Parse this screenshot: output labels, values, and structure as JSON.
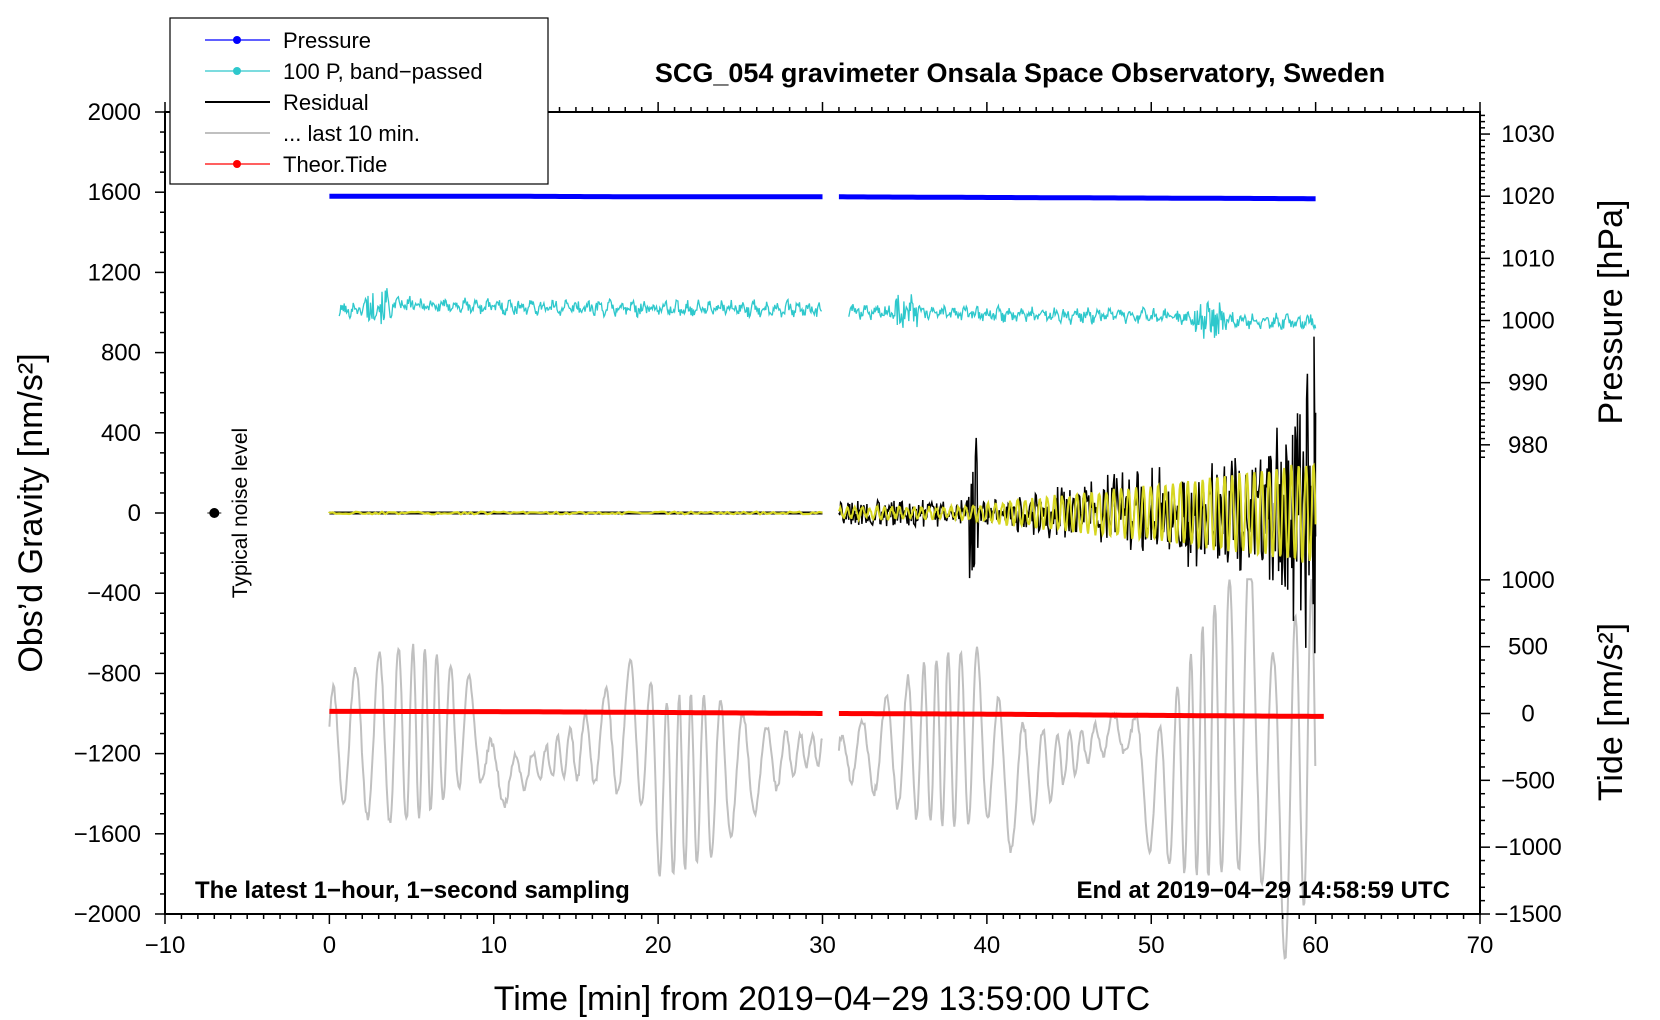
{
  "chart_data": {
    "type": "line",
    "title": "SCG_054 gravimeter Onsala Space Observatory, Sweden",
    "xlabel": "Time [min] from 2019−04−29 13:59:00 UTC",
    "ylabel_left": "Obs’d Gravity [nm/s²]",
    "ylabel_right_upper": "Pressure [hPa]",
    "ylabel_right_lower": "Tide [nm/s²]",
    "xlim": [
      -10,
      70
    ],
    "ylim_left": [
      -2000,
      2000
    ],
    "x_ticks": [
      -10,
      0,
      10,
      20,
      30,
      40,
      50,
      60,
      70
    ],
    "x_tick_labels": [
      "−10",
      "0",
      "10",
      "20",
      "30",
      "40",
      "50",
      "60",
      "70"
    ],
    "y_left_ticks": [
      2000,
      1600,
      1200,
      800,
      400,
      0,
      -400,
      -800,
      -1200,
      -1600,
      -2000
    ],
    "y_left_tick_labels": [
      "2000",
      "1600",
      "1200",
      "800",
      "400",
      "0",
      "−400",
      "−800",
      "−1200",
      "−1600",
      "−2000"
    ],
    "pressure_axis": {
      "ticks": [
        1030,
        1020,
        1010,
        1000,
        990,
        980
      ],
      "tick_labels": [
        "1030",
        "1020",
        "1010",
        "1000",
        "990",
        "980"
      ],
      "gravity_at_1020": 1580,
      "gravity_per_hPa": 31
    },
    "tide_axis": {
      "ticks": [
        1000,
        500,
        0,
        -500,
        -1000,
        -1500
      ],
      "tick_labels": [
        "1000",
        "500",
        "0",
        "−500",
        "−1000",
        "−1500"
      ],
      "gravity_at_0": -1000,
      "gravity_per_unit": 0.6667
    },
    "legend": {
      "position": "top-left",
      "entries": [
        {
          "label": "Pressure",
          "color": "#0000ff",
          "marker": true
        },
        {
          "label": "100 P, band−passed",
          "color": "#2ec8cc",
          "marker": true
        },
        {
          "label": "Residual",
          "color": "#000000",
          "marker": false
        },
        {
          "label": "... last 10 min.",
          "color": "#c0c0c0",
          "marker": false
        },
        {
          "label": "Theor.Tide",
          "color": "#ff0000",
          "marker": true
        }
      ]
    },
    "annotations": {
      "bottom_left": "The latest 1−hour, 1−second sampling",
      "bottom_right": "End at 2019−04−29 14:58:59 UTC",
      "noise_label": "Typical noise level"
    },
    "noise_marker": {
      "x": -7,
      "y": 0,
      "err": 40
    },
    "series": [
      {
        "name": "Pressure",
        "color": "#0000ff",
        "unit": "hPa",
        "segments": [
          {
            "x": [
              0,
              10,
              20,
              30
            ],
            "y": [
              1020.0,
              1020.0,
              1019.9,
              1019.9
            ]
          },
          {
            "x": [
              31,
              40,
              50,
              60
            ],
            "y": [
              1019.9,
              1019.8,
              1019.7,
              1019.6
            ]
          }
        ]
      },
      {
        "name": "100 P, band−passed",
        "color": "#2ec8cc",
        "unit": "nm/s² (offset)",
        "segments": [
          {
            "x": [
              0,
              2,
              3,
              10,
              20,
              28,
              30
            ],
            "y": [
              1000,
              1020,
              1040,
              1030,
              1020,
              1020,
              1010
            ]
          },
          {
            "x": [
              31,
              35,
              40,
              50,
              53.5,
              58,
              60
            ],
            "y": [
              1010,
              1000,
              990,
              980,
              960,
              955,
              950
            ]
          }
        ]
      },
      {
        "name": "Residual",
        "color": "#000000",
        "unit": "nm/s²",
        "segments": [
          {
            "x": [
              0,
              30
            ],
            "y": [
              0,
              0
            ]
          },
          {
            "x": [
              31,
              38.5,
              39,
              39.3,
              40,
              47,
              52,
              55,
              58,
              59.5,
              60
            ],
            "y": [
              60,
              70,
              420,
              -430,
              90,
              200,
              330,
              -340,
              480,
              -700,
              880
            ]
          }
        ]
      },
      {
        "name": "... last 10 min.",
        "color": "#c0c0c0",
        "unit": "nm/s² (offset)",
        "segments": [
          {
            "x": [
              0,
              9,
              10,
              19,
              20,
              30
            ],
            "y": [
              -1000,
              -780,
              -1580,
              -760,
              -1700,
              -1070
            ]
          },
          {
            "x": [
              31,
              40,
              41,
              48.5,
              50,
              56.5,
              57.5,
              60
            ],
            "y": [
              -1200,
              -880,
              -1670,
              -770,
              -1850,
              -350,
              -2150,
              -750
            ]
          }
        ]
      },
      {
        "name": "Theor.Tide",
        "color": "#ff0000",
        "unit": "nm/s²",
        "segments": [
          {
            "x": [
              0,
              10,
              20,
              30
            ],
            "y": [
              16,
              14,
              8,
              0
            ]
          },
          {
            "x": [
              31,
              40,
              50,
              60.5
            ],
            "y": [
              0,
              -5,
              -14,
              -22
            ]
          }
        ]
      }
    ]
  }
}
